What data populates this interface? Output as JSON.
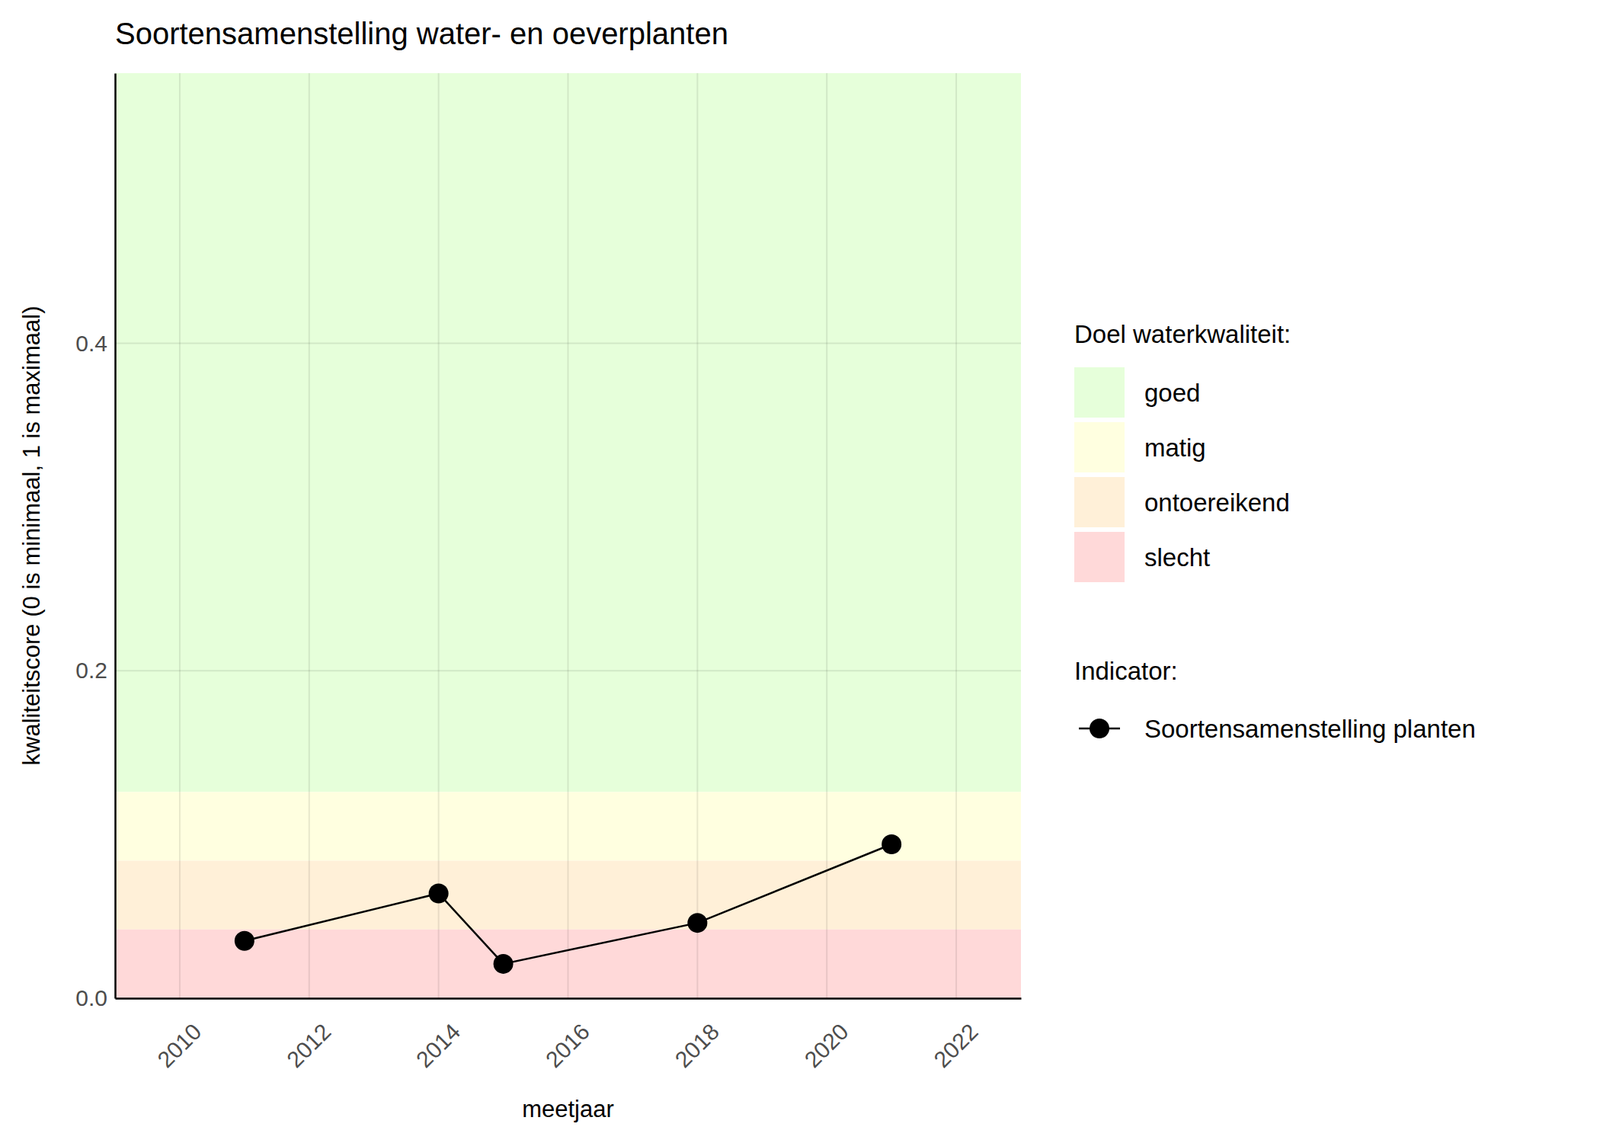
{
  "chart_data": {
    "type": "line",
    "title": "Soortensamenstelling water- en oeverplanten",
    "x_label": "meetjaar",
    "y_label": "kwaliteitscore (0 is minimaal, 1 is maximaal)",
    "x": [
      2011,
      2014,
      2015,
      2018,
      2021
    ],
    "series": [
      {
        "name": "Soortensamenstelling planten",
        "color": "#000000",
        "marker": "circle",
        "line_style": "solid",
        "values": [
          0.035,
          0.064,
          0.021,
          0.046,
          0.094
        ]
      }
    ],
    "xlim": [
      2009,
      2023
    ],
    "xticks": [
      2010,
      2012,
      2014,
      2016,
      2018,
      2020,
      2022
    ],
    "ylim": [
      0,
      0.565
    ],
    "yticks": [
      {
        "value": 0,
        "label": "0.0"
      },
      0.2,
      0.4
    ],
    "grid": true,
    "legend": "right",
    "bands_title": "Doel waterkwaliteit:",
    "legend_title": "Indicator:",
    "bands": [
      {
        "name": "goed",
        "from": 0.126,
        "to": 0.565,
        "color": "#E6FFDA"
      },
      {
        "name": "matig",
        "from": 0.084,
        "to": 0.126,
        "color": "#FFFFE0"
      },
      {
        "name": "ontoereikend",
        "from": 0.042,
        "to": 0.084,
        "color": "#FFF0D8"
      },
      {
        "name": "slecht",
        "from": 0,
        "to": 0.042,
        "color": "#FFD9D9"
      }
    ]
  }
}
